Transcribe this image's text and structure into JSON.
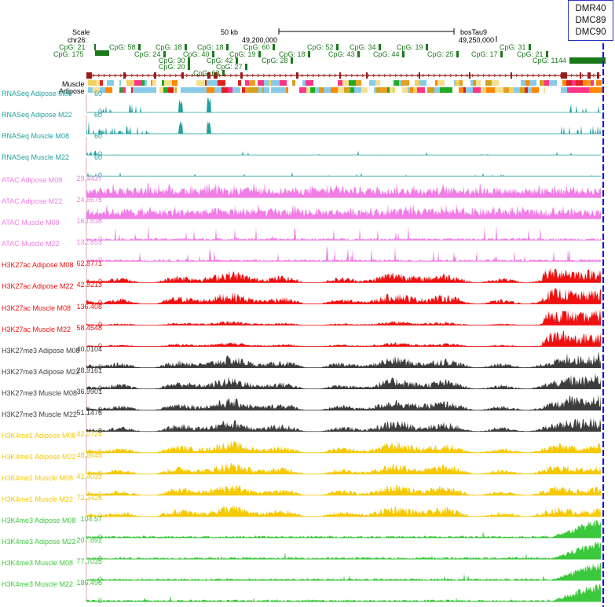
{
  "header": {
    "scale_label": "Scale",
    "chrom_label": "chr26:",
    "scale_size": "50 kb",
    "assembly": "bosTau9",
    "pos_left": "49,200,000",
    "pos_right": "49,250,000"
  },
  "cpg": {
    "row_labels": [
      "CpG: 21",
      "CpG: 175"
    ],
    "items": [
      {
        "label": "CpG: 58",
        "row": 0
      },
      {
        "label": "CpG: 18",
        "row": 0
      },
      {
        "label": "CpG: 18",
        "row": 0
      },
      {
        "label": "CpG: 60",
        "row": 0
      },
      {
        "label": "CpG: 52",
        "row": 0
      },
      {
        "label": "CpG: 34",
        "row": 0
      },
      {
        "label": "CpG: 19",
        "row": 0
      },
      {
        "label": "CpG: 31",
        "row": 0
      },
      {
        "label": "CpG: 24",
        "row": 1
      },
      {
        "label": "CpG: 40",
        "row": 1
      },
      {
        "label": "CpG: 19",
        "row": 1
      },
      {
        "label": "CpG: 18",
        "row": 1
      },
      {
        "label": "CpG: 43",
        "row": 1
      },
      {
        "label": "CpG: 44",
        "row": 1
      },
      {
        "label": "CpG: 25",
        "row": 1
      },
      {
        "label": "CpG: 17",
        "row": 1
      },
      {
        "label": "CpG: 21",
        "row": 1
      },
      {
        "label": "CpG: 30",
        "row": 2
      },
      {
        "label": "CpG: 42",
        "row": 2
      },
      {
        "label": "CpG: 28",
        "row": 2
      },
      {
        "label": "CpG: 1144",
        "row": 2
      },
      {
        "label": "CpG: 20",
        "row": 3
      },
      {
        "label": "CpG: 27",
        "row": 3
      },
      {
        "label": "CpG: 63",
        "row": 4
      }
    ]
  },
  "state_labels": [
    "Muscle",
    "Adipose"
  ],
  "dmr_box": [
    "DMR40",
    "DMC89",
    "DMC90"
  ],
  "colors": {
    "rnaseq": "#23a0a0",
    "atac": "#f07ee6",
    "h3k27ac": "#ee1111",
    "h3k27me3": "#3d3d3d",
    "h3k4me1": "#f5c800",
    "h3k4me3": "#3cc83c",
    "cpg": "#1a7a1a",
    "gene": "#9a1a1a",
    "marker": "#1a1adc"
  },
  "tracks": [
    {
      "name": "RNASeq Adipose M08",
      "max": "60",
      "min": "0",
      "color_key": "rnaseq"
    },
    {
      "name": "RNASeq Adipose M22",
      "max": "60",
      "min": "0",
      "color_key": "rnaseq"
    },
    {
      "name": "RNASeq Muscle M08",
      "max": "60",
      "min": "0",
      "color_key": "rnaseq"
    },
    {
      "name": "RNASeq Muscle M22",
      "max": "60",
      "min": "0",
      "color_key": "rnaseq"
    },
    {
      "name": "ATAC Adipose M08",
      "max": "29.4437",
      "min": "0",
      "color_key": "atac"
    },
    {
      "name": "ATAC Adipose M22",
      "max": "24.6675",
      "min": "0",
      "color_key": "atac"
    },
    {
      "name": "ATAC Muscle M08",
      "max": "163.838",
      "min": "0",
      "color_key": "atac"
    },
    {
      "name": "ATAC Muscle M22",
      "max": "132.853",
      "min": "0",
      "color_key": "atac"
    },
    {
      "name": "H3K27ac Adipose M08",
      "max": "62.8771",
      "min": "0",
      "color_key": "h3k27ac"
    },
    {
      "name": "H3K27ac Adipose M22",
      "max": "42.8213",
      "min": "0",
      "color_key": "h3k27ac"
    },
    {
      "name": "H3K27ac Muscle M08",
      "max": "136.408",
      "min": "0",
      "color_key": "h3k27ac"
    },
    {
      "name": "H3K27ac Muscle M22",
      "max": "58.4548",
      "min": "0",
      "color_key": "h3k27ac"
    },
    {
      "name": "H3K27me3 Adipose M08",
      "max": "40.0104",
      "min": "0",
      "color_key": "h3k27me3"
    },
    {
      "name": "H3K27me3 Adipose M22",
      "max": "28.9161",
      "min": "0",
      "color_key": "h3k27me3"
    },
    {
      "name": "H3K27me3 Muscle M08",
      "max": "36.9901",
      "min": "0",
      "color_key": "h3k27me3"
    },
    {
      "name": "H3K27me3 Muscle M22",
      "max": "51.1476",
      "min": "0",
      "color_key": "h3k27me3"
    },
    {
      "name": "H3K4me1 Adipose M08",
      "max": "42.0724",
      "min": "0",
      "color_key": "h3k4me1"
    },
    {
      "name": "H3K4me1 Adipose M22",
      "max": "48.8645",
      "min": "0",
      "color_key": "h3k4me1"
    },
    {
      "name": "H3K4me1 Muscle M08",
      "max": "41.4033",
      "min": "0",
      "color_key": "h3k4me1"
    },
    {
      "name": "H3K4me1 Muscle M22",
      "max": "72.3426",
      "min": "0",
      "color_key": "h3k4me1"
    },
    {
      "name": "H3K4me3 Adipose M08",
      "max": "104.57",
      "min": "0",
      "color_key": "h3k4me3"
    },
    {
      "name": "H3K4me3 Adipose M22",
      "max": "207.892",
      "min": "0",
      "color_key": "h3k4me3"
    },
    {
      "name": "H3K4me3 Muscle M08",
      "max": "77.7035",
      "min": "0",
      "color_key": "h3k4me3"
    },
    {
      "name": "H3K4me3 Muscle M22",
      "max": "186.496",
      "min": "0",
      "color_key": "h3k4me3"
    }
  ]
}
